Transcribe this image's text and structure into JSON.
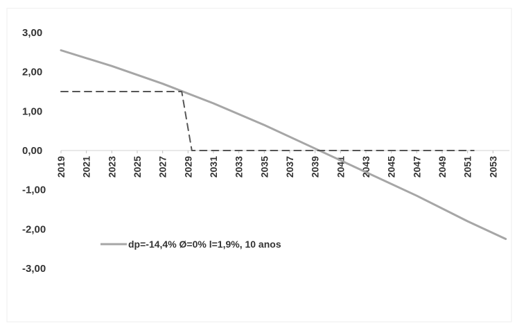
{
  "chart_data": {
    "type": "line",
    "title": "",
    "xlabel": "",
    "ylabel": "",
    "ylim": [
      -3,
      3
    ],
    "xlim": [
      2019,
      2054
    ],
    "y_ticks": [
      "3,00",
      "2,00",
      "1,00",
      "0,00",
      "-1,00",
      "-2,00",
      "-3,00"
    ],
    "y_tick_values": [
      3,
      2,
      1,
      0,
      -1,
      -2,
      -3
    ],
    "x_ticks": [
      "2019",
      "2021",
      "2023",
      "2025",
      "2027",
      "2029",
      "2031",
      "2033",
      "2035",
      "2037",
      "2039",
      "2041",
      "2043",
      "2045",
      "2047",
      "2049",
      "2051",
      "2053"
    ],
    "x_tick_values": [
      2019,
      2021,
      2023,
      2025,
      2027,
      2029,
      2031,
      2033,
      2035,
      2037,
      2039,
      2041,
      2043,
      2045,
      2047,
      2049,
      2051,
      2053
    ],
    "grid": false,
    "legend_position": "bottom-left",
    "series": [
      {
        "name": "dp=-14,4% Ø=0% l=1,9%, 10 anos",
        "style": "solid",
        "color": "#a6a6a6",
        "x": [
          2019,
          2023,
          2027,
          2031,
          2035,
          2039,
          2043,
          2047,
          2051,
          2054
        ],
        "y": [
          2.55,
          2.15,
          1.7,
          1.2,
          0.65,
          0.05,
          -0.55,
          -1.15,
          -1.8,
          -2.25
        ]
      },
      {
        "style": "dashed",
        "color": "#555555",
        "x": [
          2019,
          2028.5,
          2029.3,
          2051.5
        ],
        "y": [
          1.5,
          1.5,
          0.0,
          0.0
        ]
      }
    ]
  }
}
